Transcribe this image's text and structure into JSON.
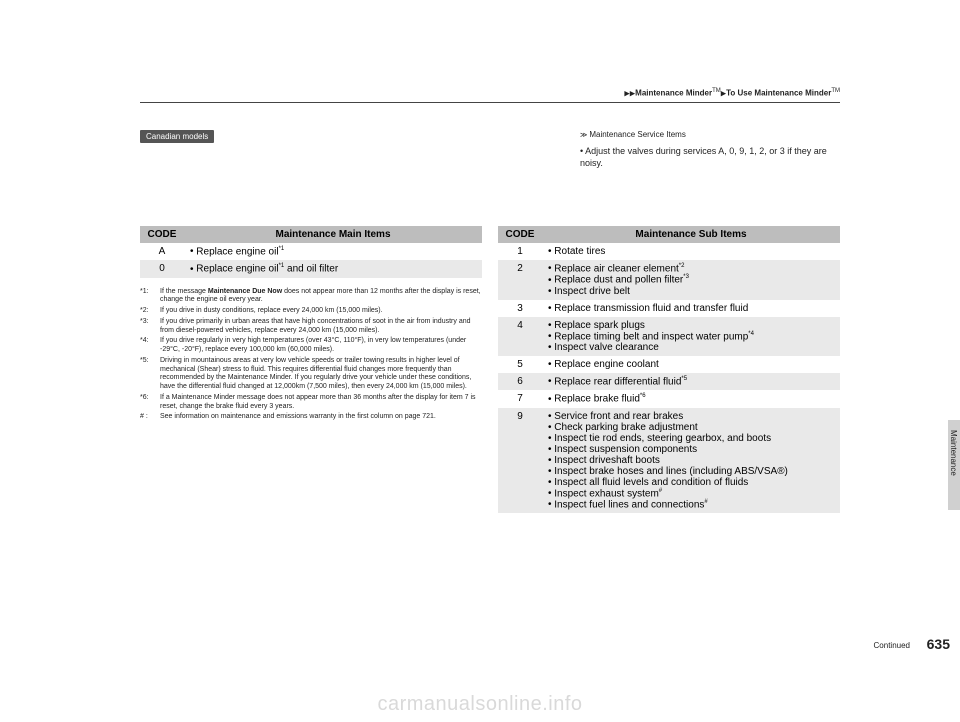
{
  "breadcrumb": {
    "part1": "Maintenance Minder",
    "tm1": "TM",
    "part2": "To Use Maintenance Minder",
    "tm2": "TM"
  },
  "badge": "Canadian models",
  "service_items": {
    "label": "Maintenance Service Items",
    "note": "• Adjust the valves during services A, 0, 9, 1, 2, or 3 if they are noisy."
  },
  "main_table": {
    "code_header": "CODE",
    "desc_header": "Maintenance Main Items",
    "rows": [
      {
        "code": "A",
        "items": [
          {
            "text": "Replace engine oil",
            "sup": "*1"
          }
        ],
        "alt": false
      },
      {
        "code": "0",
        "items": [
          {
            "text": "Replace engine oil",
            "sup": "*1",
            "tail": " and oil filter"
          }
        ],
        "alt": true
      }
    ]
  },
  "sub_table": {
    "code_header": "CODE",
    "desc_header": "Maintenance Sub Items",
    "rows": [
      {
        "code": "1",
        "items": [
          {
            "text": "Rotate tires"
          }
        ],
        "alt": false
      },
      {
        "code": "2",
        "items": [
          {
            "text": "Replace air cleaner element",
            "sup": "*2"
          },
          {
            "text": "Replace dust and pollen filter",
            "sup": "*3"
          },
          {
            "text": "Inspect drive belt"
          }
        ],
        "alt": true
      },
      {
        "code": "3",
        "items": [
          {
            "text": "Replace transmission fluid and transfer fluid"
          }
        ],
        "alt": false
      },
      {
        "code": "4",
        "items": [
          {
            "text": "Replace spark plugs"
          },
          {
            "text": "Replace timing belt and inspect water pump",
            "sup": "*4"
          },
          {
            "text": "Inspect valve clearance"
          }
        ],
        "alt": true
      },
      {
        "code": "5",
        "items": [
          {
            "text": "Replace engine coolant"
          }
        ],
        "alt": false
      },
      {
        "code": "6",
        "items": [
          {
            "text": "Replace rear differential fluid",
            "sup": "*5"
          }
        ],
        "alt": true
      },
      {
        "code": "7",
        "items": [
          {
            "text": "Replace brake fluid",
            "sup": "*6"
          }
        ],
        "alt": false
      },
      {
        "code": "9",
        "items": [
          {
            "text": "Service front and rear brakes"
          },
          {
            "text": "Check parking brake adjustment"
          },
          {
            "text": "Inspect tie rod ends, steering gearbox, and boots"
          },
          {
            "text": "Inspect suspension components"
          },
          {
            "text": "Inspect driveshaft boots"
          },
          {
            "text": "Inspect brake hoses and lines (including ABS/VSA®)"
          },
          {
            "text": "Inspect all fluid levels and condition of fluids"
          },
          {
            "text": "Inspect exhaust system",
            "sup": "#"
          },
          {
            "text": "Inspect fuel lines and connections",
            "sup": "#"
          }
        ],
        "alt": true
      }
    ]
  },
  "footnotes": [
    {
      "k": "*1:",
      "t": "If the message Maintenance Due Now does not appear more than 12 months after the display is reset, change the engine oil every year."
    },
    {
      "k": "*2:",
      "t": "If you drive in dusty conditions, replace every 24,000 km (15,000 miles)."
    },
    {
      "k": "*3:",
      "t": "If you drive primarily in urban areas that have high concentrations of soot in the air from industry and from diesel-powered vehicles, replace every 24,000 km (15,000 miles)."
    },
    {
      "k": "*4:",
      "t": "If you drive regularly in very high temperatures (over 43°C, 110°F), in very low temperatures (under -29°C, -20°F), replace every 100,000 km (60,000 miles)."
    },
    {
      "k": "*5:",
      "t": "Driving in mountainous areas at very low vehicle speeds or trailer towing results in higher level of mechanical (Shear) stress to fluid. This requires differential fluid changes more frequently than recommended by the Maintenance Minder. If you regularly drive your vehicle under these conditions, have the differential fluid changed at 12,000km (7,500 miles), then every 24,000 km (15,000 miles)."
    },
    {
      "k": "*6:",
      "t": "If a Maintenance Minder message does not appear more than 36 months after the display for item 7 is reset, change the brake fluid every 3 years."
    },
    {
      "k": "# :",
      "t": "See information on maintenance and emissions warranty in the first column on page 721."
    }
  ],
  "side_label": "Maintenance",
  "continued": "Continued",
  "page_number": "635",
  "watermark": "carmanualsonline.info"
}
